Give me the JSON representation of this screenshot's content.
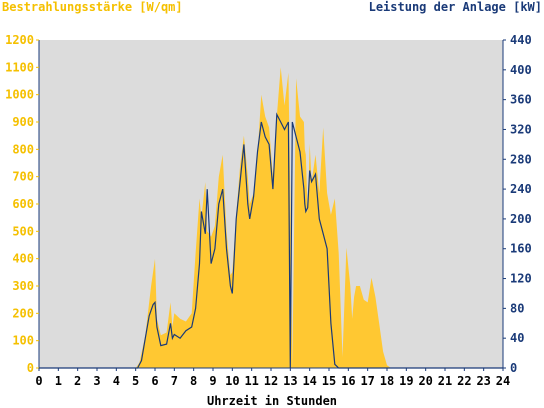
{
  "chart_data": {
    "type": "area",
    "left_axis_label": "Bestrahlungsstärke [W/qm]",
    "right_axis_label": "Leistung der Anlage [kW]",
    "xlabel": "Uhrzeit in Stunden",
    "x_ticks": [
      "0",
      "1",
      "2",
      "3",
      "4",
      "5",
      "6",
      "7",
      "8",
      "9",
      "10",
      "11",
      "12",
      "13",
      "14",
      "15",
      "16",
      "17",
      "18",
      "19",
      "20",
      "21",
      "22",
      "23",
      "24"
    ],
    "y_left_ticks": [
      "0",
      "100",
      "200",
      "300",
      "400",
      "500",
      "600",
      "700",
      "800",
      "900",
      "1000",
      "1100",
      "1200"
    ],
    "y_right_ticks": [
      "0",
      "40",
      "80",
      "120",
      "160",
      "200",
      "240",
      "280",
      "320",
      "360",
      "400",
      "440"
    ],
    "ylim_left": [
      0,
      1200
    ],
    "ylim_right": [
      0,
      440
    ],
    "xlim": [
      0,
      24
    ],
    "colors": {
      "irradiance": "#ffc832",
      "power": "#1a3a78",
      "plot_bg": "#dcdcdc",
      "left_axis": "#f5c000",
      "right_axis": "#1a3a78"
    },
    "series": [
      {
        "name": "Bestrahlungsstärke",
        "axis": "left",
        "x": [
          0,
          5.0,
          5.2,
          5.5,
          5.8,
          6.0,
          6.1,
          6.3,
          6.6,
          6.8,
          6.9,
          7.0,
          7.3,
          7.6,
          7.9,
          8.1,
          8.3,
          8.4,
          8.6,
          8.7,
          8.9,
          9.1,
          9.3,
          9.5,
          9.7,
          9.9,
          10.0,
          10.2,
          10.4,
          10.6,
          10.8,
          10.9,
          11.1,
          11.3,
          11.5,
          11.7,
          11.9,
          12.1,
          12.3,
          12.5,
          12.7,
          12.9,
          13.0,
          13.1,
          13.3,
          13.5,
          13.7,
          13.75,
          13.8,
          13.9,
          14.0,
          14.1,
          14.3,
          14.5,
          14.7,
          14.9,
          15.1,
          15.3,
          15.5,
          15.7,
          15.9,
          16.1,
          16.2,
          16.3,
          16.4,
          16.6,
          16.8,
          17.0,
          17.2,
          17.4,
          17.6,
          17.8,
          18.0,
          18.2,
          18.4,
          18.6,
          18.8,
          19.0,
          19.2,
          19.5,
          19.8,
          20.0,
          24
        ],
        "values": [
          0,
          0,
          20,
          120,
          300,
          400,
          180,
          120,
          130,
          240,
          150,
          200,
          180,
          170,
          200,
          420,
          620,
          550,
          680,
          500,
          480,
          520,
          700,
          780,
          500,
          340,
          350,
          560,
          740,
          850,
          700,
          600,
          640,
          780,
          1000,
          920,
          880,
          700,
          920,
          1100,
          960,
          1080,
          640,
          0,
          1060,
          920,
          900,
          800,
          780,
          560,
          820,
          680,
          780,
          640,
          880,
          640,
          560,
          620,
          420,
          40,
          440,
          300,
          180,
          260,
          300,
          300,
          250,
          240,
          330,
          260,
          160,
          60,
          10,
          0,
          0,
          0,
          0,
          0,
          0,
          0,
          0,
          0,
          0
        ]
      },
      {
        "name": "Leistung der Anlage",
        "axis": "right",
        "x": [
          0,
          5.1,
          5.3,
          5.5,
          5.7,
          5.9,
          6.0,
          6.1,
          6.3,
          6.6,
          6.8,
          6.9,
          7.0,
          7.3,
          7.6,
          7.9,
          8.1,
          8.3,
          8.4,
          8.6,
          8.7,
          8.9,
          9.1,
          9.3,
          9.5,
          9.7,
          9.9,
          10.0,
          10.2,
          10.4,
          10.6,
          10.8,
          10.9,
          11.1,
          11.3,
          11.5,
          11.7,
          11.9,
          12.1,
          12.3,
          12.5,
          12.7,
          12.9,
          13.0,
          13.1,
          13.3,
          13.5,
          13.7,
          13.75,
          13.8,
          13.9,
          14.0,
          14.1,
          14.3,
          14.5,
          14.7,
          14.9,
          15.1,
          15.3,
          15.5,
          15.7,
          15.9,
          16.1,
          16.2,
          16.3,
          16.4,
          16.6,
          16.8,
          17.0,
          17.2,
          17.4,
          17.6,
          17.8,
          18.0,
          18.2,
          18.4,
          18.6,
          18.8,
          19.0,
          19.2,
          19.5,
          19.8,
          20.0,
          24
        ],
        "values": [
          0,
          0,
          10,
          40,
          70,
          85,
          88,
          55,
          30,
          32,
          60,
          40,
          45,
          40,
          50,
          55,
          80,
          140,
          210,
          180,
          240,
          140,
          160,
          220,
          240,
          160,
          110,
          100,
          200,
          250,
          300,
          220,
          200,
          230,
          290,
          330,
          310,
          300,
          240,
          340,
          330,
          320,
          330,
          0,
          330,
          310,
          290,
          240,
          220,
          210,
          215,
          265,
          250,
          260,
          200,
          180,
          160,
          60,
          5,
          0,
          0,
          0,
          0,
          0,
          0,
          0,
          0,
          0,
          0,
          0,
          0,
          0,
          0,
          0,
          0,
          0,
          0,
          0,
          0,
          0,
          0,
          0,
          0,
          0
        ]
      }
    ]
  }
}
